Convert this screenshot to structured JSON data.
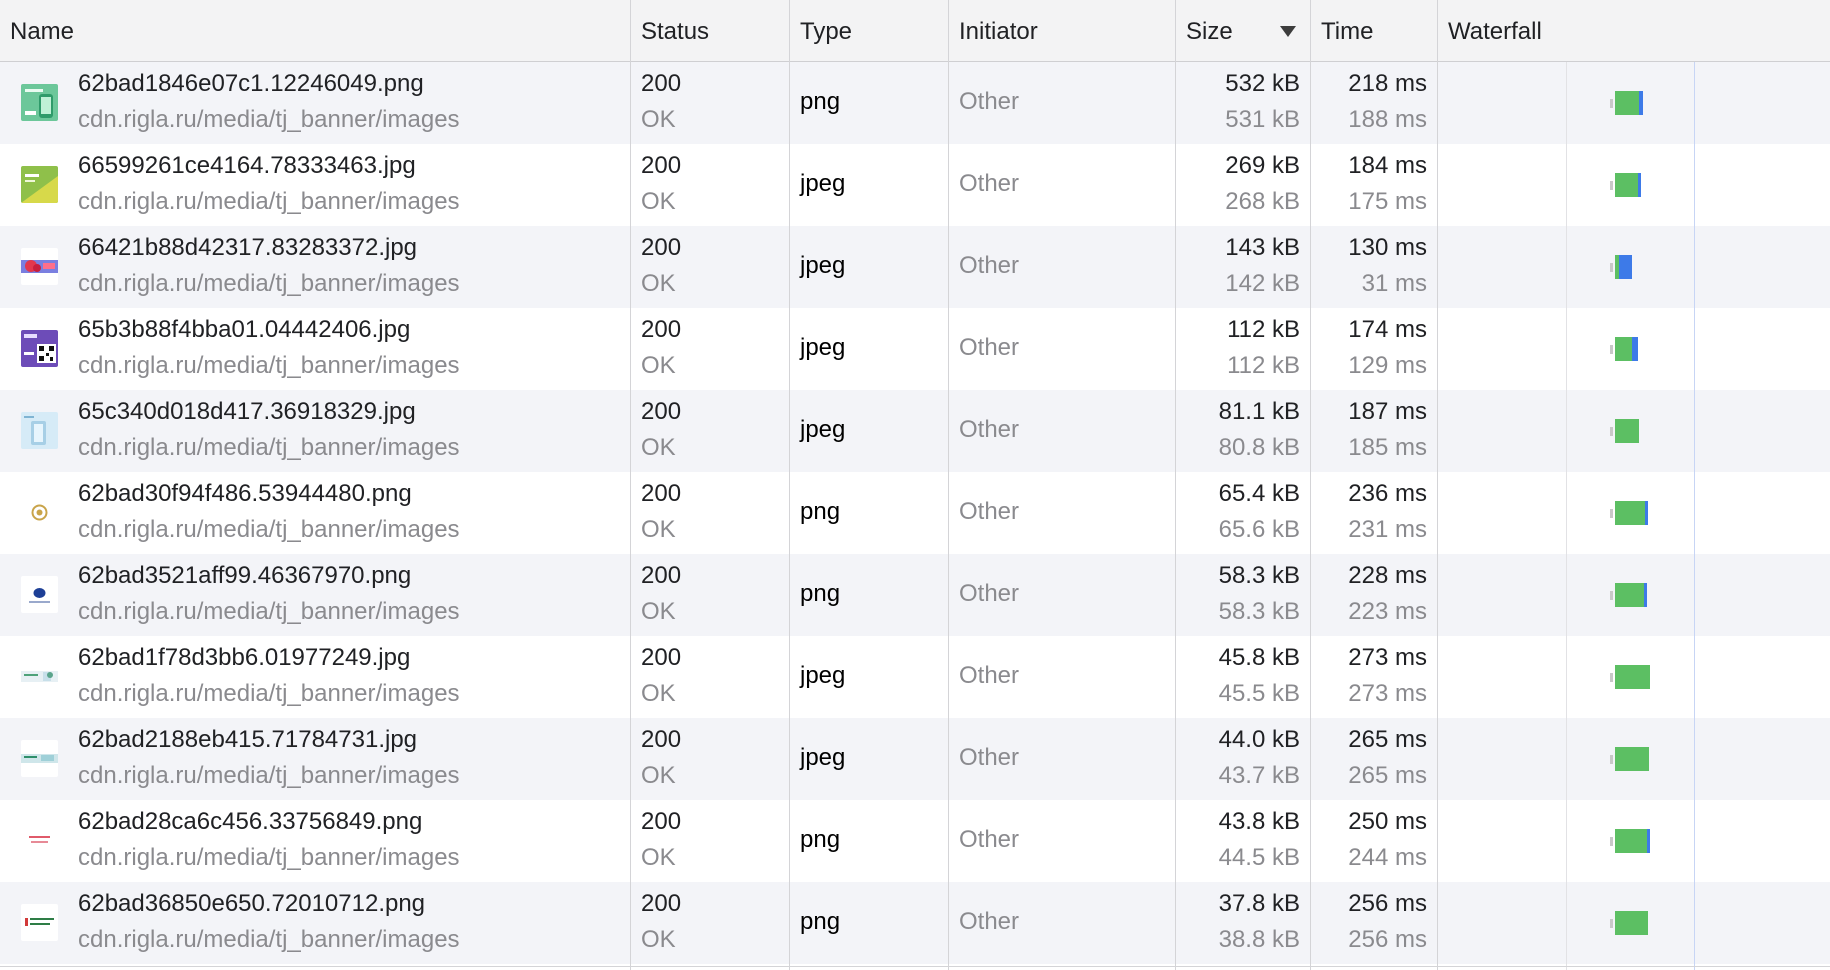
{
  "columns": {
    "name": "Name",
    "status": "Status",
    "type": "Type",
    "initiator": "Initiator",
    "size": "Size",
    "time": "Time",
    "waterfall": "Waterfall"
  },
  "sort": {
    "column": "size",
    "direction": "descending",
    "icon": "sort-descending-icon"
  },
  "colors": {
    "waterfall_receive": "#5cbf63",
    "waterfall_download": "#3d7ae8",
    "header_bg": "#f3f3f4",
    "row_alt_bg": "#f3f4f8"
  },
  "rows": [
    {
      "name": "62bad1846e07c1.12246049.png",
      "domain": "cdn.rigla.ru/media/tj_banner/images",
      "status_code": "200",
      "status_text": "OK",
      "type": "png",
      "initiator": "Other",
      "size_transferred": "532 kB",
      "size_resource": "531 kB",
      "time_total": "218 ms",
      "time_latency": "188 ms",
      "thumb": "green-promo-thumbnail",
      "waterfall_ms": {
        "receive": 218,
        "download": 30
      }
    },
    {
      "name": "66599261ce4164.78333463.jpg",
      "domain": "cdn.rigla.ru/media/tj_banner/images",
      "status_code": "200",
      "status_text": "OK",
      "type": "jpeg",
      "initiator": "Other",
      "size_transferred": "269 kB",
      "size_resource": "268 kB",
      "time_total": "184 ms",
      "time_latency": "175 ms",
      "thumb": "green-yellow-thumbnail",
      "waterfall_ms": {
        "receive": 184,
        "download": 9
      }
    },
    {
      "name": "66421b88d42317.83283372.jpg",
      "domain": "cdn.rigla.ru/media/tj_banner/images",
      "status_code": "200",
      "status_text": "OK",
      "type": "jpeg",
      "initiator": "Other",
      "size_transferred": "143 kB",
      "size_resource": "142 kB",
      "time_total": "130 ms",
      "time_latency": "31 ms",
      "thumb": "red-banner-thumbnail",
      "waterfall_ms": {
        "receive": 130,
        "download": 99
      }
    },
    {
      "name": "65b3b88f4bba01.04442406.jpg",
      "domain": "cdn.rigla.ru/media/tj_banner/images",
      "status_code": "200",
      "status_text": "OK",
      "type": "jpeg",
      "initiator": "Other",
      "size_transferred": "112 kB",
      "size_resource": "112 kB",
      "time_total": "174 ms",
      "time_latency": "129 ms",
      "thumb": "qr-code-thumbnail",
      "waterfall_ms": {
        "receive": 174,
        "download": 45
      }
    },
    {
      "name": "65c340d018d417.36918329.jpg",
      "domain": "cdn.rigla.ru/media/tj_banner/images",
      "status_code": "200",
      "status_text": "OK",
      "type": "jpeg",
      "initiator": "Other",
      "size_transferred": "81.1 kB",
      "size_resource": "80.8 kB",
      "time_total": "187 ms",
      "time_latency": "185 ms",
      "thumb": "light-blue-thumbnail",
      "waterfall_ms": {
        "receive": 187,
        "download": 2
      }
    },
    {
      "name": "62bad30f94f486.53944480.png",
      "domain": "cdn.rigla.ru/media/tj_banner/images",
      "status_code": "200",
      "status_text": "OK",
      "type": "png",
      "initiator": "Other",
      "size_transferred": "65.4 kB",
      "size_resource": "65.6 kB",
      "time_total": "236 ms",
      "time_latency": "231 ms",
      "thumb": "badge-logo-thumbnail",
      "waterfall_ms": {
        "receive": 236,
        "download": 5
      }
    },
    {
      "name": "62bad3521aff99.46367970.png",
      "domain": "cdn.rigla.ru/media/tj_banner/images",
      "status_code": "200",
      "status_text": "OK",
      "type": "png",
      "initiator": "Other",
      "size_transferred": "58.3 kB",
      "size_resource": "58.3 kB",
      "time_total": "228 ms",
      "time_latency": "223 ms",
      "thumb": "blue-logo-thumbnail",
      "waterfall_ms": {
        "receive": 228,
        "download": 5
      }
    },
    {
      "name": "62bad1f78d3bb6.01977249.jpg",
      "domain": "cdn.rigla.ru/media/tj_banner/images",
      "status_code": "200",
      "status_text": "OK",
      "type": "jpeg",
      "initiator": "Other",
      "size_transferred": "45.8 kB",
      "size_resource": "45.5 kB",
      "time_total": "273 ms",
      "time_latency": "273 ms",
      "thumb": "wide-banner-thumbnail",
      "waterfall_ms": {
        "receive": 273,
        "download": 0
      }
    },
    {
      "name": "62bad2188eb415.71784731.jpg",
      "domain": "cdn.rigla.ru/media/tj_banner/images",
      "status_code": "200",
      "status_text": "OK",
      "type": "jpeg",
      "initiator": "Other",
      "size_transferred": "44.0 kB",
      "size_resource": "43.7 kB",
      "time_total": "265 ms",
      "time_latency": "265 ms",
      "thumb": "teal-banner-thumbnail",
      "waterfall_ms": {
        "receive": 265,
        "download": 0
      }
    },
    {
      "name": "62bad28ca6c456.33756849.png",
      "domain": "cdn.rigla.ru/media/tj_banner/images",
      "status_code": "200",
      "status_text": "OK",
      "type": "png",
      "initiator": "Other",
      "size_transferred": "43.8 kB",
      "size_resource": "44.5 kB",
      "time_total": "250 ms",
      "time_latency": "244 ms",
      "thumb": "red-text-thumbnail",
      "waterfall_ms": {
        "receive": 250,
        "download": 6
      }
    },
    {
      "name": "62bad36850e650.72010712.png",
      "domain": "cdn.rigla.ru/media/tj_banner/images",
      "status_code": "200",
      "status_text": "OK",
      "type": "png",
      "initiator": "Other",
      "size_transferred": "37.8 kB",
      "size_resource": "38.8 kB",
      "time_total": "256 ms",
      "time_latency": "256 ms",
      "thumb": "green-text-thumbnail",
      "waterfall_ms": {
        "receive": 256,
        "download": 0
      }
    }
  ]
}
